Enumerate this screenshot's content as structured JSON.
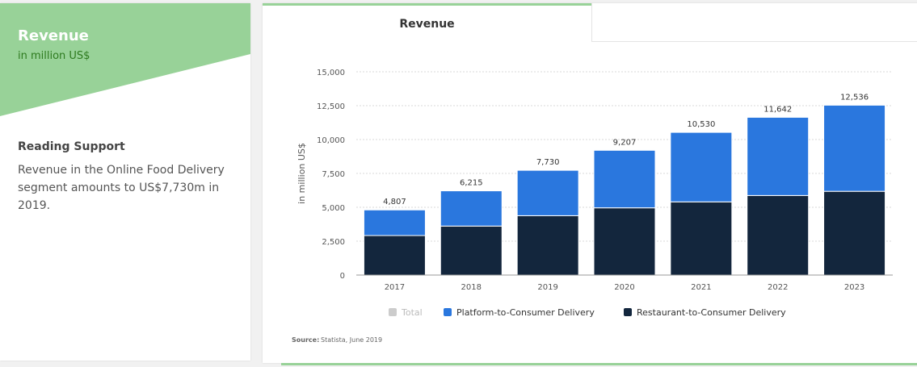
{
  "left_panel": {
    "title": "Revenue",
    "subtitle": "in million US$",
    "reading_support_title": "Reading Support",
    "reading_support_text": "Revenue in the Online Food Delivery segment amounts to US$7,730m in 2019."
  },
  "tabs": {
    "active_label": "Revenue"
  },
  "source": {
    "label": "Source:",
    "text": "Statista, June 2019"
  },
  "colors": {
    "accent_green": "#98d298",
    "platform_blue": "#2a77de",
    "restaurant_navy": "#13263d",
    "total_gray": "#cccccc"
  },
  "chart_data": {
    "type": "bar",
    "stacked": true,
    "title": "Revenue",
    "xlabel": "",
    "ylabel": "in million US$",
    "categories": [
      "2017",
      "2018",
      "2019",
      "2020",
      "2021",
      "2022",
      "2023"
    ],
    "series": [
      {
        "name": "Restaurant-to-Consumer Delivery",
        "values": [
          2915,
          3615,
          4380,
          4960,
          5400,
          5870,
          6180
        ],
        "color": "#13263d"
      },
      {
        "name": "Platform-to-Consumer Delivery",
        "values": [
          1892,
          2600,
          3350,
          4247,
          5130,
          5772,
          6356
        ],
        "color": "#2a77de"
      }
    ],
    "totals": [
      4807,
      6215,
      7730,
      9207,
      10530,
      11642,
      12536
    ],
    "total_labels": [
      "4,807",
      "6,215",
      "7,730",
      "9,207",
      "10,530",
      "11,642",
      "12,536"
    ],
    "yticks": [
      0,
      2500,
      5000,
      7500,
      10000,
      12500,
      15000
    ],
    "ytick_labels": [
      "0",
      "2,500",
      "5,000",
      "7,500",
      "10,000",
      "12,500",
      "15,000"
    ],
    "ylim": [
      0,
      15000
    ],
    "grid": true,
    "legend": [
      {
        "name": "Total",
        "color": "#cccccc",
        "disabled": true
      },
      {
        "name": "Platform-to-Consumer Delivery",
        "color": "#2a77de",
        "disabled": false
      },
      {
        "name": "Restaurant-to-Consumer Delivery",
        "color": "#13263d",
        "disabled": false
      }
    ]
  }
}
